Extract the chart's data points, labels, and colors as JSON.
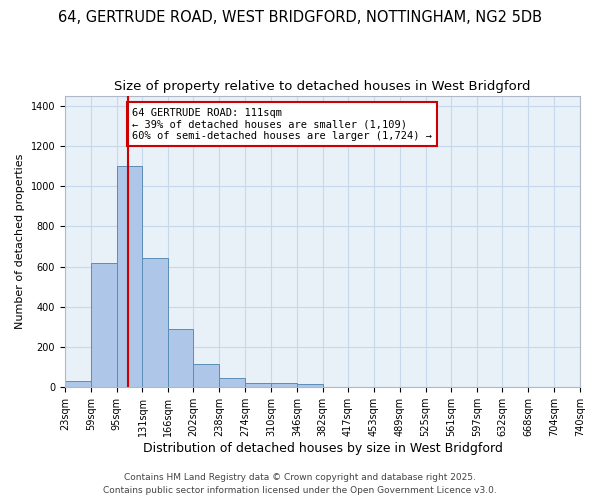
{
  "title": "64, GERTRUDE ROAD, WEST BRIDGFORD, NOTTINGHAM, NG2 5DB",
  "subtitle": "Size of property relative to detached houses in West Bridgford",
  "xlabel": "Distribution of detached houses by size in West Bridgford",
  "ylabel": "Number of detached properties",
  "figure_bg": "#ffffff",
  "axes_bg": "#e8f0f8",
  "bar_color": "#aec6e8",
  "bar_edge_color": "#5b8db8",
  "vline_color": "#cc0000",
  "vline_x": 111,
  "bin_edges": [
    23,
    59,
    95,
    131,
    166,
    202,
    238,
    274,
    310,
    346,
    382,
    417,
    453,
    489,
    525,
    561,
    597,
    632,
    668,
    704,
    740
  ],
  "bin_labels": [
    "23sqm",
    "59sqm",
    "95sqm",
    "131sqm",
    "166sqm",
    "202sqm",
    "238sqm",
    "274sqm",
    "310sqm",
    "346sqm",
    "382sqm",
    "417sqm",
    "453sqm",
    "489sqm",
    "525sqm",
    "561sqm",
    "597sqm",
    "632sqm",
    "668sqm",
    "704sqm",
    "740sqm"
  ],
  "counts": [
    30,
    620,
    1100,
    640,
    290,
    115,
    48,
    22,
    20,
    14,
    0,
    0,
    0,
    0,
    0,
    0,
    0,
    0,
    0,
    0
  ],
  "ylim": [
    0,
    1450
  ],
  "yticks": [
    0,
    200,
    400,
    600,
    800,
    1000,
    1200,
    1400
  ],
  "annotation_text": "64 GERTRUDE ROAD: 111sqm\n← 39% of detached houses are smaller (1,109)\n60% of semi-detached houses are larger (1,724) →",
  "annotation_box_color": "#ffffff",
  "annotation_box_edge": "#cc0000",
  "footer_line1": "Contains HM Land Registry data © Crown copyright and database right 2025.",
  "footer_line2": "Contains public sector information licensed under the Open Government Licence v3.0.",
  "grid_color": "#c8d8ec",
  "title_fontsize": 10.5,
  "subtitle_fontsize": 9.5,
  "ylabel_fontsize": 8,
  "xlabel_fontsize": 9,
  "tick_fontsize": 7,
  "footer_fontsize": 6.5,
  "annotation_fontsize": 7.5
}
